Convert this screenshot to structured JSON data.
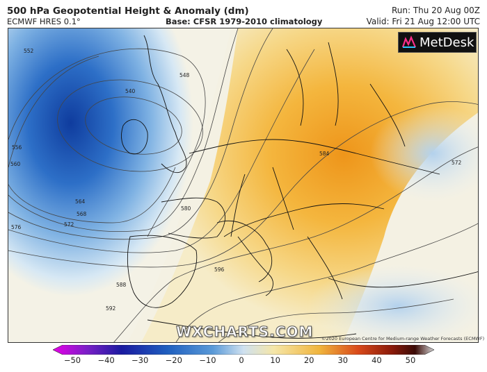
{
  "header": {
    "title": "500 hPa Geopotential Height & Anomaly (dm)",
    "model": "ECMWF HRES 0.1°",
    "base": "Base: CFSR 1979-2010 climatology",
    "run": "Run: Thu 20 Aug 00Z",
    "valid": "Valid: Fri 21 Aug 12:00 UTC"
  },
  "logo": {
    "text": "MetDesk",
    "icon": "metdesk-logo-icon"
  },
  "watermark": "WXCHARTS.COM",
  "copyright": "©2020 European Centre for Medium-range Weather Forecasts (ECMWF)",
  "contour_labels": [
    "552",
    "548",
    "540",
    "556",
    "560",
    "564",
    "568",
    "572",
    "576",
    "580",
    "584",
    "588",
    "592",
    "596",
    "572"
  ],
  "colorbar": {
    "ticks": [
      "−50",
      "−40",
      "−30",
      "−20",
      "−10",
      "0",
      "10",
      "20",
      "30",
      "40",
      "50"
    ],
    "colors": [
      "#e600e6",
      "#7a1fc7",
      "#1a1aa0",
      "#1f5fbf",
      "#5a9ad8",
      "#cfe1f0",
      "#f5e6a8",
      "#f0b43c",
      "#d94a1a",
      "#8a1a0a",
      "#3a0a05",
      "#d8d8d8"
    ]
  },
  "colors": {
    "low_center": "#1747a6",
    "ridge_center": "#ef9a1c",
    "neutral": "#f3f1e4"
  }
}
